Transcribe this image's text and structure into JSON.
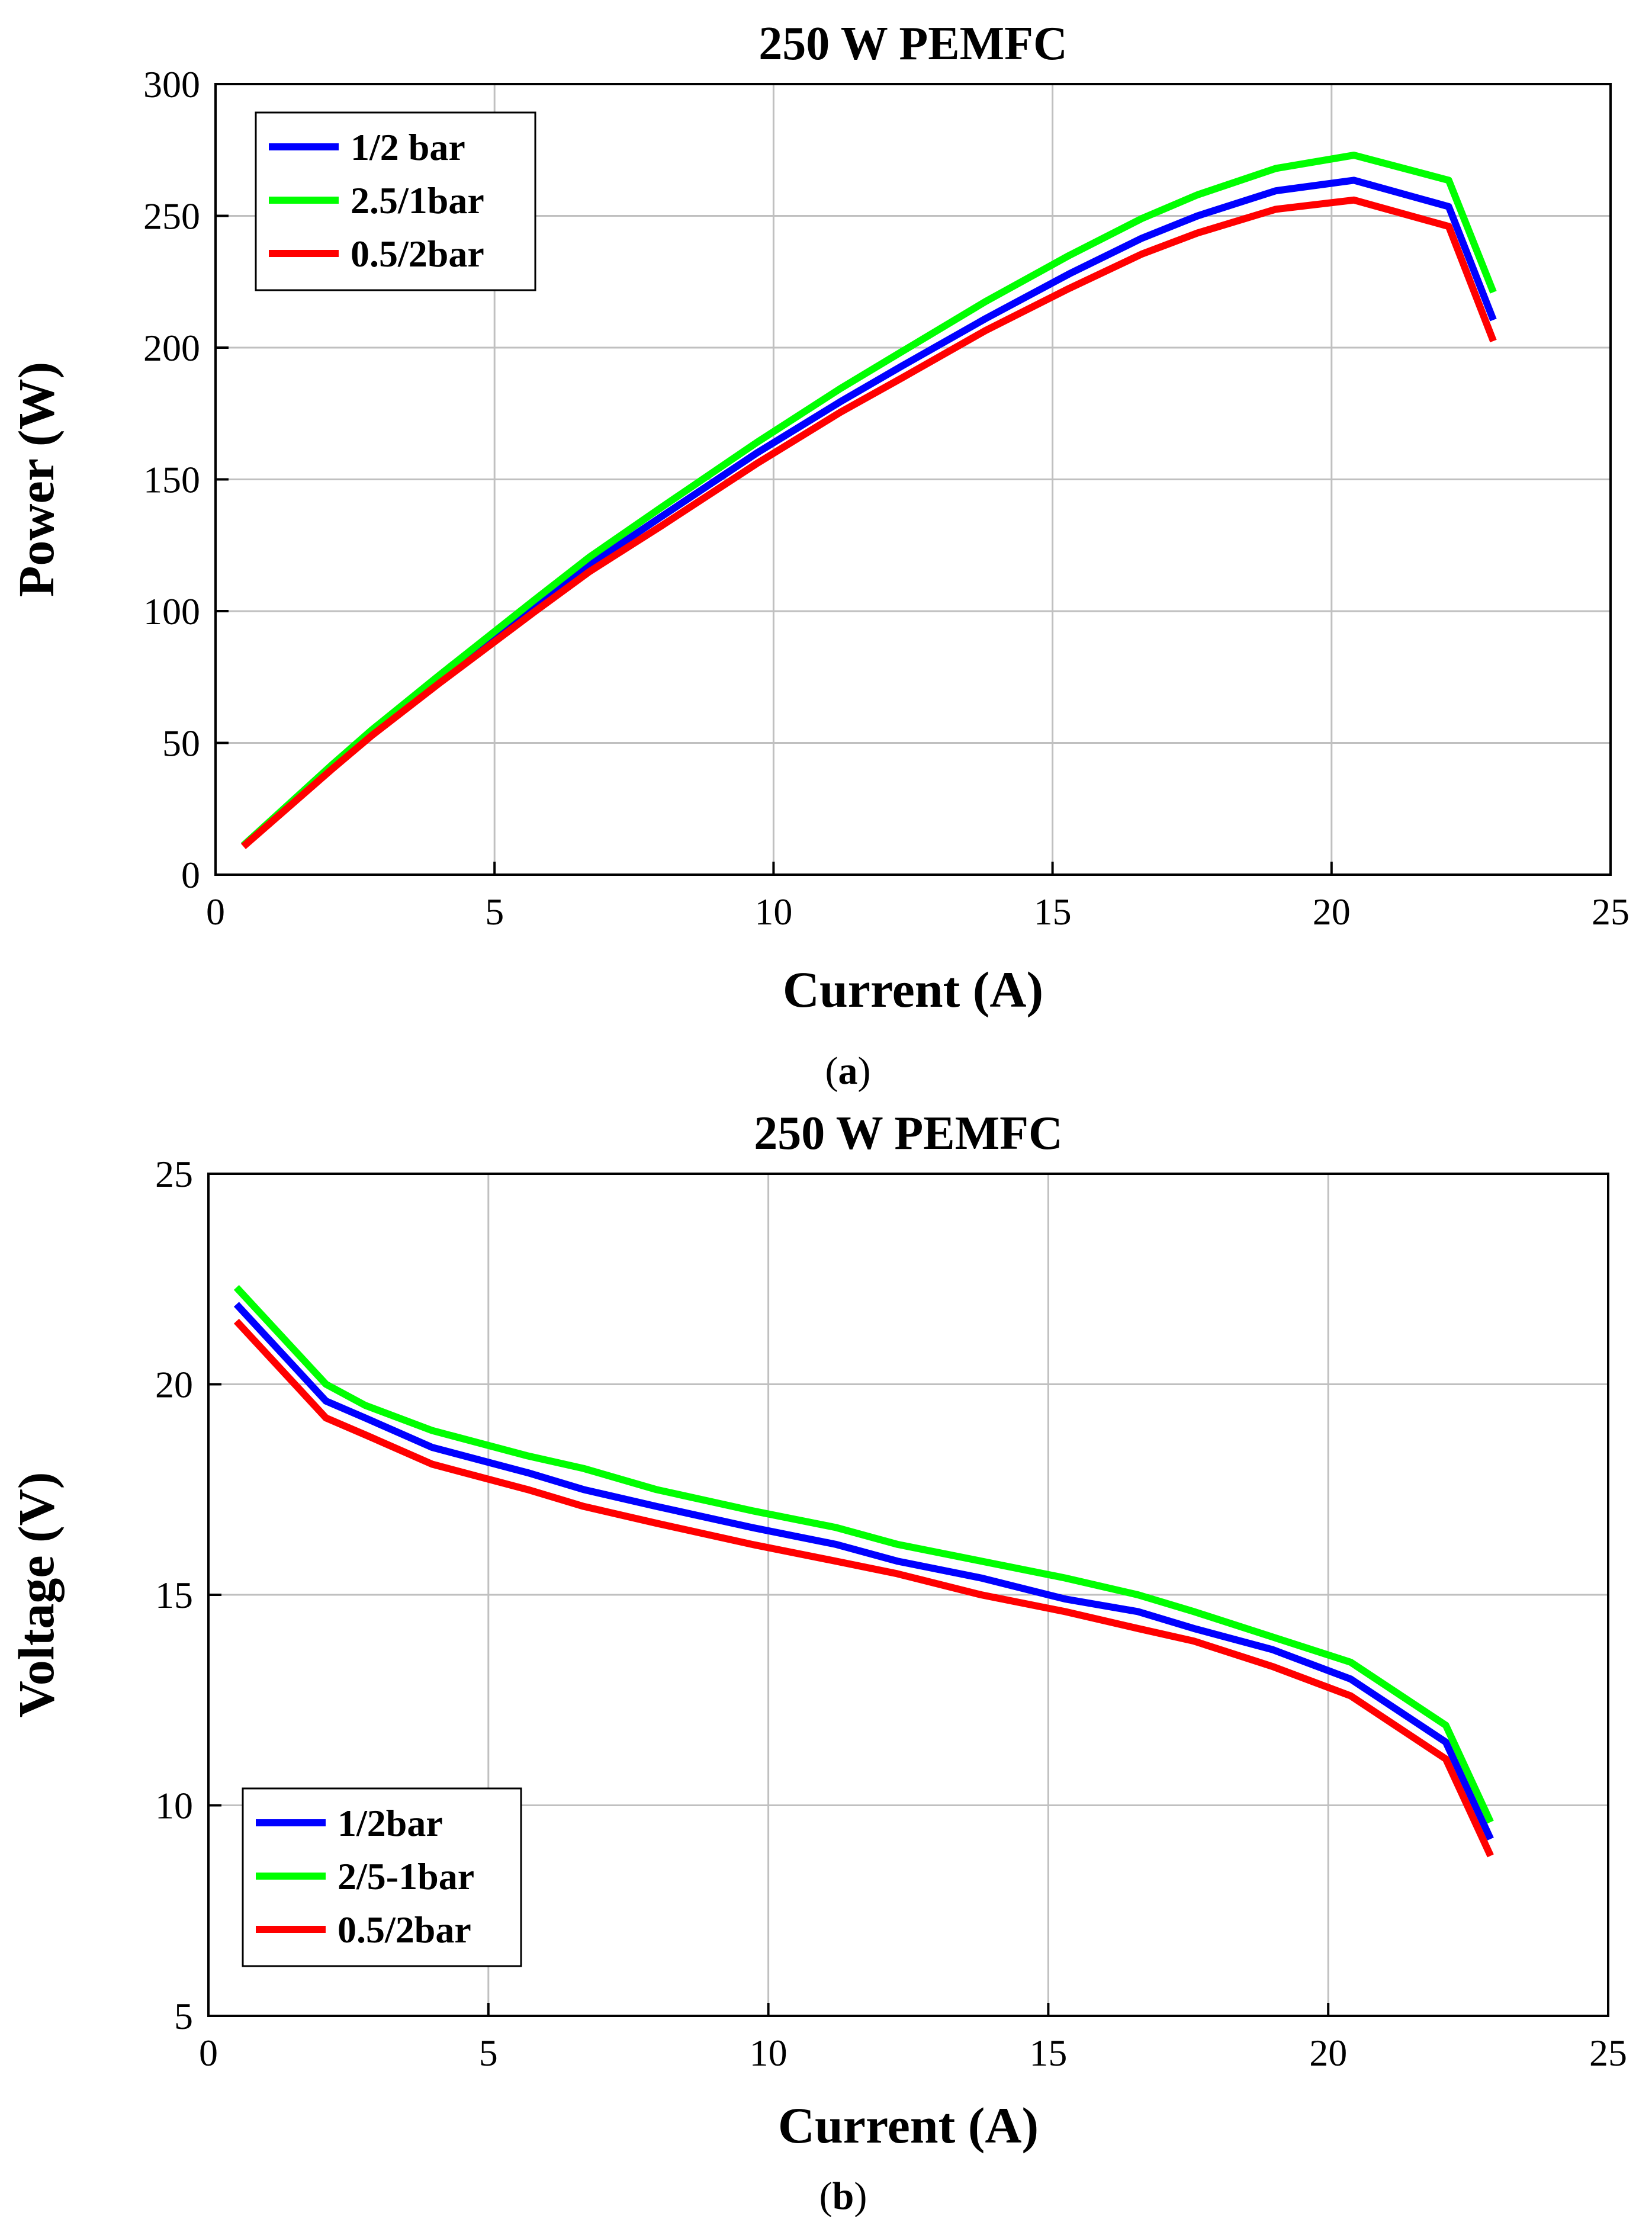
{
  "chart_data": [
    {
      "type": "line",
      "title": "250 W PEMFC",
      "xlabel": "Current (A)",
      "ylabel": "Power (W)",
      "caption_prefix": "(",
      "caption_letter": "a",
      "caption_suffix": ")",
      "xlim": [
        0,
        25
      ],
      "ylim": [
        0,
        300
      ],
      "xticks": [
        0,
        5,
        10,
        15,
        20,
        25
      ],
      "yticks": [
        0,
        50,
        100,
        150,
        200,
        250,
        300
      ],
      "grid": true,
      "legend_position": "top-left",
      "series": [
        {
          "name": "1/2 bar",
          "color": "#0000ff",
          "x": [
            0.5,
            2.1,
            2.8,
            4.0,
            5.7,
            6.7,
            8.0,
            9.7,
            11.2,
            12.3,
            13.8,
            15.3,
            16.6,
            17.6,
            19.0,
            20.4,
            22.1,
            22.9
          ],
          "y": [
            10.9,
            41.0,
            53.8,
            74.0,
            102.0,
            117.5,
            136.0,
            160.0,
            179.5,
            193.0,
            211.0,
            228.0,
            241.5,
            250.0,
            259.5,
            263.5,
            253.5,
            210.5
          ]
        },
        {
          "name": "2.5/1bar",
          "color": "#00ff00",
          "x": [
            0.5,
            2.1,
            2.8,
            4.0,
            5.7,
            6.7,
            8.0,
            9.7,
            11.2,
            12.3,
            13.8,
            15.3,
            16.6,
            17.6,
            19.0,
            20.4,
            22.1,
            22.9
          ],
          "y": [
            11.1,
            41.9,
            54.9,
            75.5,
            104.0,
            120.5,
            139.5,
            164.0,
            184.5,
            198.5,
            217.5,
            235.0,
            249.0,
            258.0,
            268.0,
            273.0,
            263.5,
            221.0
          ]
        },
        {
          "name": "0.5/2bar",
          "color": "#ff0000",
          "x": [
            0.5,
            2.1,
            2.8,
            4.0,
            5.7,
            6.7,
            8.0,
            9.7,
            11.2,
            12.3,
            13.8,
            15.3,
            16.6,
            17.6,
            19.0,
            20.4,
            22.1,
            22.9
          ],
          "y": [
            10.7,
            40.3,
            52.8,
            72.5,
            99.5,
            115.0,
            132.5,
            156.0,
            175.5,
            188.5,
            206.5,
            222.5,
            235.5,
            243.5,
            252.5,
            256.0,
            246.0,
            202.5
          ]
        }
      ]
    },
    {
      "type": "line",
      "title": "250 W PEMFC",
      "xlabel": "Current (A)",
      "ylabel": "Voltage (V)",
      "caption_prefix": "(",
      "caption_letter": "b",
      "caption_suffix": ")",
      "xlim": [
        0,
        25
      ],
      "ylim": [
        5,
        25
      ],
      "xticks": [
        0,
        5,
        10,
        15,
        20,
        25
      ],
      "yticks": [
        5,
        10,
        15,
        20,
        25
      ],
      "grid": true,
      "legend_position": "bottom-left",
      "series": [
        {
          "name": "1/2bar",
          "color": "#0000ff",
          "x": [
            0.5,
            2.1,
            2.8,
            4.0,
            5.7,
            6.7,
            8.0,
            9.7,
            11.2,
            12.3,
            13.8,
            15.3,
            16.6,
            17.6,
            19.0,
            20.4,
            22.1,
            22.9
          ],
          "y": [
            21.9,
            19.6,
            19.2,
            18.5,
            17.9,
            17.5,
            17.1,
            16.6,
            16.2,
            15.8,
            15.4,
            14.9,
            14.6,
            14.2,
            13.7,
            13.0,
            11.5,
            9.2
          ]
        },
        {
          "name": "2/5-1bar",
          "color": "#00ff00",
          "x": [
            0.5,
            2.1,
            2.8,
            4.0,
            5.7,
            6.7,
            8.0,
            9.7,
            11.2,
            12.3,
            13.8,
            15.3,
            16.6,
            17.6,
            19.0,
            20.4,
            22.1,
            22.9
          ],
          "y": [
            22.3,
            20.0,
            19.5,
            18.9,
            18.3,
            18.0,
            17.5,
            17.0,
            16.6,
            16.2,
            15.8,
            15.4,
            15.0,
            14.6,
            14.0,
            13.4,
            11.9,
            9.6
          ]
        },
        {
          "name": "0.5/2bar",
          "color": "#ff0000",
          "x": [
            0.5,
            2.1,
            2.8,
            4.0,
            5.7,
            6.7,
            8.0,
            9.7,
            11.2,
            12.3,
            13.8,
            15.3,
            16.6,
            17.6,
            19.0,
            20.4,
            22.1,
            22.9
          ],
          "y": [
            21.5,
            19.2,
            18.8,
            18.1,
            17.5,
            17.1,
            16.7,
            16.2,
            15.8,
            15.5,
            15.0,
            14.6,
            14.2,
            13.9,
            13.3,
            12.6,
            11.1,
            8.8
          ]
        }
      ]
    }
  ]
}
